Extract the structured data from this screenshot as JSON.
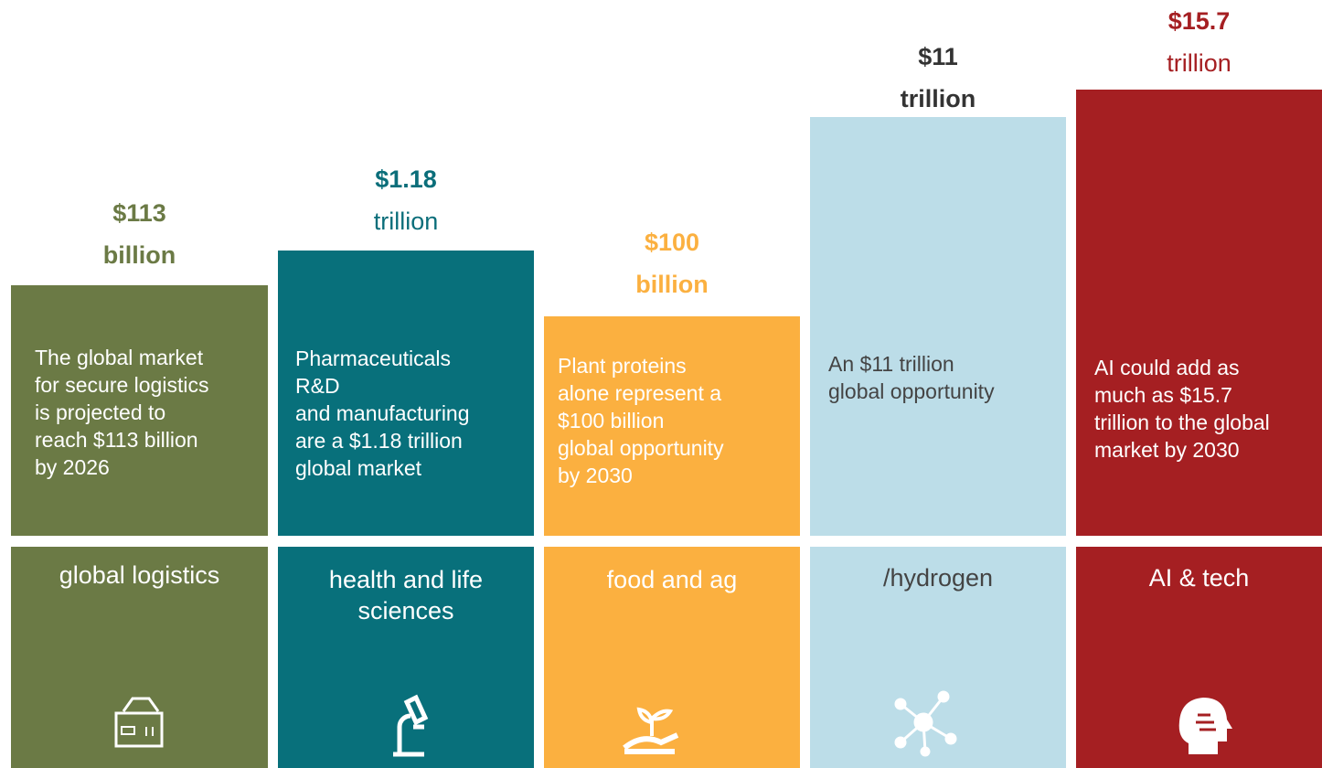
{
  "columns": [
    {
      "value": "$113",
      "unit": "billion",
      "description": [
        "The global market",
        "for secure logistics",
        "is projected to",
        "reach $113 billion",
        "by 2026"
      ],
      "category": [
        "global logistics"
      ]
    },
    {
      "value": "$1.18",
      "unit": "trillion",
      "description": [
        "Pharmaceuticals",
        "R&D",
        "and manufacturing",
        "are a $1.18 trillion",
        "global market"
      ],
      "category": [
        "health and  life",
        "sciences"
      ]
    },
    {
      "value": "$100",
      "unit": "billion",
      "description": [
        "Plant proteins",
        "alone represent a",
        "$100 billion",
        "global opportunity",
        "by 2030"
      ],
      "category": [
        "food and  ag"
      ]
    },
    {
      "value": "$11",
      "unit": "trillion",
      "description": [
        "An $11 trillion",
        "global opportunity"
      ],
      "category": [
        "/hydrogen"
      ]
    },
    {
      "value": "$15.7",
      "unit": "trillion",
      "description": [
        "AI could add as",
        "much as $15.7",
        "trillion to the global",
        "market by 2030"
      ],
      "category": [
        "AI & tech"
      ]
    }
  ]
}
